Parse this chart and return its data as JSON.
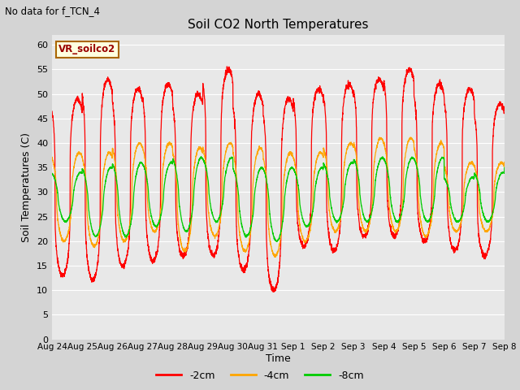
{
  "title": "Soil CO2 North Temperatures",
  "subtitle": "No data for f_TCN_4",
  "ylabel": "Soil Temperatures (C)",
  "xlabel": "Time",
  "legend_label": "VR_soilco2",
  "ylim": [
    0,
    62
  ],
  "yticks": [
    0,
    5,
    10,
    15,
    20,
    25,
    30,
    35,
    40,
    45,
    50,
    55,
    60
  ],
  "series_labels": [
    "-2cm",
    "-4cm",
    "-8cm"
  ],
  "series_colors": [
    "#ff0000",
    "#ffa500",
    "#00cc00"
  ],
  "fig_bg_color": "#d4d4d4",
  "plot_bg_color": "#e8e8e8",
  "grid_color": "#ffffff",
  "x_labels": [
    "Aug 24",
    "Aug 25",
    "Aug 26",
    "Aug 27",
    "Aug 28",
    "Aug 29",
    "Aug 30",
    "Aug 31",
    "Sep 1",
    "Sep 2",
    "Sep 3",
    "Sep 4",
    "Sep 5",
    "Sep 6",
    "Sep 7",
    "Sep 8"
  ],
  "n_days": 15,
  "red_peaks": [
    49,
    53,
    51,
    52,
    50,
    55,
    50,
    49,
    51,
    52,
    53,
    55,
    52,
    51,
    48,
    48
  ],
  "red_troughs": [
    13,
    12,
    15,
    16,
    17,
    17,
    14,
    10,
    19,
    18,
    21,
    21,
    20,
    18,
    17,
    17
  ],
  "ora_peaks": [
    38,
    38,
    40,
    40,
    39,
    40,
    39,
    38,
    38,
    40,
    41,
    41,
    40,
    36,
    36,
    37
  ],
  "ora_troughs": [
    20,
    19,
    20,
    22,
    18,
    21,
    18,
    17,
    20,
    22,
    22,
    22,
    21,
    22,
    22,
    23
  ],
  "grn_peaks": [
    34,
    35,
    36,
    36,
    37,
    37,
    35,
    35,
    35,
    36,
    37,
    37,
    37,
    33,
    34,
    35
  ],
  "grn_troughs": [
    24,
    21,
    21,
    23,
    22,
    24,
    21,
    20,
    23,
    24,
    24,
    24,
    24,
    24,
    24,
    25
  ],
  "red_peak_phase": 0.6,
  "ora_peak_phase": 0.65,
  "grn_peak_phase": 0.7
}
